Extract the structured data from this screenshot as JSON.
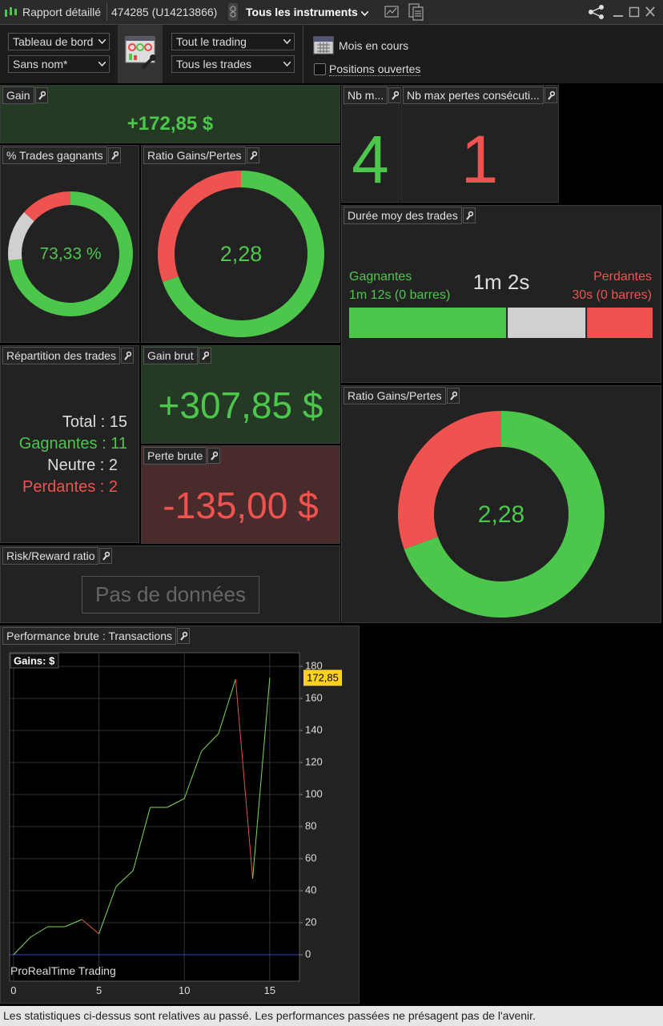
{
  "titlebar": {
    "title": "Rapport détaillé",
    "account": "474285 (U14213866)",
    "instruments": "Tous les instruments"
  },
  "toolbar": {
    "dashboard": "Tableau de bord",
    "name": "Sans nom*",
    "trading": "Tout le trading",
    "trades": "Tous les trades",
    "period": "Mois en cours",
    "open_positions": "Positions ouvertes"
  },
  "widgets": {
    "gain": {
      "title": "Gain",
      "value": "+172,85 $"
    },
    "nb_m": {
      "title": "Nb m...",
      "value": "4"
    },
    "nb_max_losses": {
      "title": "Nb max pertes consécuti...",
      "value": "1"
    },
    "win_rate": {
      "title": "% Trades gagnants",
      "label": "73,33 %",
      "segments": {
        "values": [
          73.33,
          13.33,
          13.34
        ],
        "colors": [
          "#4cc74c",
          "#d0d0d0",
          "#ef5350"
        ]
      }
    },
    "ratio": {
      "title": "Ratio Gains/Pertes",
      "label": "2,28",
      "segments": {
        "values": [
          307.85,
          135
        ],
        "colors": [
          "#4cc74c",
          "#ef5350"
        ]
      }
    },
    "duration": {
      "title": "Durée moy des trades",
      "winners": "Gagnantes",
      "winners_detail": "1m 12s (0 barres)",
      "average": "1m 2s",
      "losers": "Perdantes",
      "losers_detail": "30s (0 barres)",
      "segments": {
        "values": [
          52,
          26,
          22
        ],
        "colors": [
          "#4cc74c",
          "#d0d0d0",
          "#ef5350"
        ]
      }
    },
    "distribution": {
      "title": "Répartition des trades",
      "lines": [
        "Total : 15",
        "Gagnantes : 11",
        "Neutre : 2",
        "Perdantes : 2"
      ]
    },
    "gross_gain": {
      "title": "Gain brut",
      "value": "+307,85 $"
    },
    "gross_loss": {
      "title": "Perte brute",
      "value": "-135,00 $"
    },
    "ratio_large": {
      "title": "Ratio Gains/Pertes",
      "label": "2,28",
      "segments": {
        "values": [
          307.85,
          135
        ],
        "colors": [
          "#4cc74c",
          "#ef5350"
        ]
      }
    },
    "risk_reward": {
      "title": "Risk/Reward ratio",
      "value": "Pas de données"
    },
    "performance": {
      "title": "Performance brute : Transactions",
      "watermark": "ProRealTime Trading",
      "chart_data": {
        "type": "line",
        "x": [
          0,
          1,
          2,
          3,
          4,
          5,
          6,
          7,
          8,
          9,
          10,
          11,
          12,
          13,
          14,
          15
        ],
        "series": [
          {
            "name": "Gains: $",
            "color": "#7ed957",
            "down_color": "#e85050",
            "values": [
              0,
              11,
              17.5,
              17.5,
              22,
              13,
              42.5,
              52.5,
              92,
              92,
              97.5,
              127,
              138,
              172,
              47.5,
              172.85
            ],
            "value_labels": [
              null,
              null,
              null,
              null,
              null,
              null,
              null,
              null,
              null,
              null,
              null,
              null,
              null,
              null,
              null,
              "172,85"
            ]
          }
        ],
        "xlim": [
          -0.23,
          16.74
        ],
        "ylim": [
          -16.5,
          188.5
        ],
        "xticks": [
          0,
          5,
          10,
          15
        ],
        "yticks": [
          0,
          20,
          40,
          60,
          80,
          100,
          120,
          140,
          160,
          180
        ],
        "grid": true,
        "zero_line_color": "#3848c8"
      }
    }
  },
  "footer": "Les statistiques ci-dessus sont relatives au passé. Les performances passées ne présagent pas de l'avenir."
}
